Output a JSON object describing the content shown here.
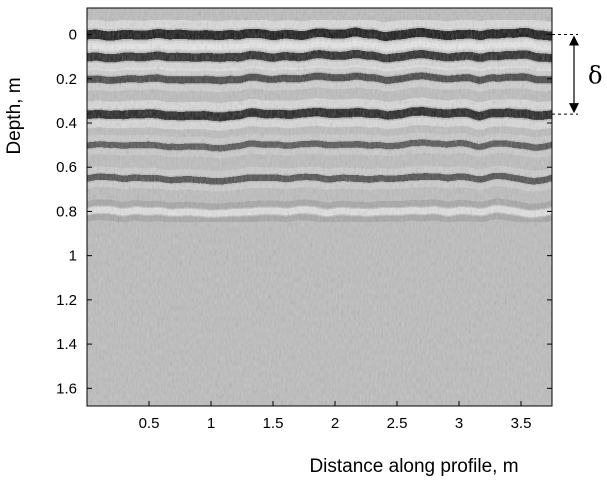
{
  "chart_data": {
    "type": "heatmap",
    "title": "",
    "xlabel": "Distance along profile, m",
    "ylabel": "Depth, m",
    "xlim": [
      0,
      3.75
    ],
    "ylim": [
      1.68,
      -0.12
    ],
    "y_inverted": true,
    "colormap": "gray",
    "x_ticks": [
      0.5,
      1,
      1.5,
      2,
      2.5,
      3,
      3.5
    ],
    "x_tick_labels": [
      "0.5",
      "1",
      "1.5",
      "2",
      "2.5",
      "3",
      "3.5"
    ],
    "y_ticks": [
      0,
      0.2,
      0.4,
      0.6,
      0.8,
      1,
      1.2,
      1.4,
      1.6
    ],
    "y_tick_labels": [
      "0",
      "0.2",
      "0.4",
      "0.6",
      "0.8",
      "1",
      "1.2",
      "1.4",
      "1.6"
    ],
    "reflectors": [
      {
        "depth": 0.0,
        "polarity": "dark",
        "strength": 1.0
      },
      {
        "depth": 0.1,
        "polarity": "dark",
        "strength": 0.85
      },
      {
        "depth": 0.2,
        "polarity": "dark",
        "strength": 0.6
      },
      {
        "depth": 0.36,
        "polarity": "dark",
        "strength": 0.9
      },
      {
        "depth": 0.5,
        "polarity": "dark",
        "strength": 0.45
      },
      {
        "depth": 0.65,
        "polarity": "dark",
        "strength": 0.5
      },
      {
        "depth": 0.8,
        "polarity": "light",
        "strength": 0.5
      }
    ],
    "annotation": {
      "label": "δ",
      "from_depth": 0.0,
      "to_depth": 0.36,
      "style": "double-arrow with dashed leader lines"
    }
  }
}
